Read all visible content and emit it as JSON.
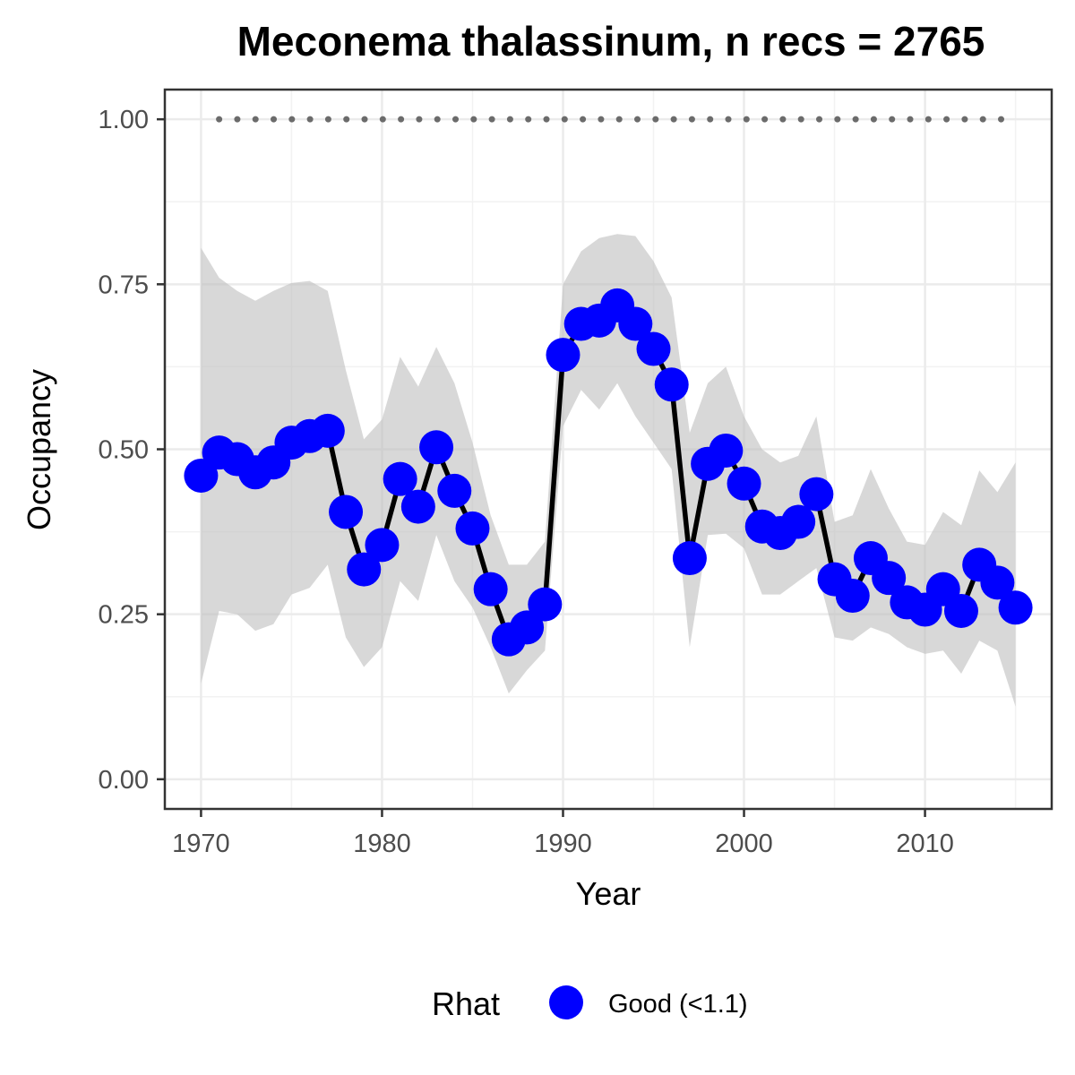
{
  "chart_data": {
    "type": "line",
    "title": "Meconema thalassinum, n recs = 2765",
    "xlabel": "Year",
    "ylabel": "Occupancy",
    "xlim": [
      1968,
      2017
    ],
    "ylim": [
      -0.045,
      1.045
    ],
    "x_ticks": [
      1970,
      1980,
      1990,
      2000,
      2010
    ],
    "x_tick_labels": [
      "1970",
      "1980",
      "1990",
      "2000",
      "2010"
    ],
    "y_ticks": [
      0,
      0.25,
      0.5,
      0.75,
      1.0
    ],
    "y_tick_labels": [
      "0.00",
      "0.25",
      "0.50",
      "0.75",
      "1.00"
    ],
    "grid": true,
    "legend": {
      "position": "bottom",
      "title": "Rhat",
      "items": [
        {
          "label": "Good (<1.1)",
          "color": "#0000ff"
        }
      ]
    },
    "colors": {
      "points": "#0000ff",
      "line": "#000000",
      "ribbon": "#bebebe",
      "reference": "#6b6b6b"
    },
    "years": [
      1970,
      1971,
      1972,
      1973,
      1974,
      1975,
      1976,
      1977,
      1978,
      1979,
      1980,
      1981,
      1982,
      1983,
      1984,
      1985,
      1986,
      1987,
      1988,
      1989,
      1990,
      1991,
      1992,
      1993,
      1994,
      1995,
      1996,
      1997,
      1998,
      1999,
      2000,
      2001,
      2002,
      2003,
      2004,
      2005,
      2006,
      2007,
      2008,
      2009,
      2010,
      2011,
      2012,
      2013,
      2014,
      2015
    ],
    "series": [
      {
        "name": "Good (<1.1)",
        "values": [
          0.46,
          0.495,
          0.485,
          0.465,
          0.48,
          0.51,
          0.52,
          0.528,
          0.405,
          0.318,
          0.355,
          0.455,
          0.413,
          0.503,
          0.437,
          0.38,
          0.288,
          0.212,
          0.23,
          0.265,
          0.643,
          0.69,
          0.695,
          0.718,
          0.69,
          0.652,
          0.598,
          0.335,
          0.478,
          0.498,
          0.448,
          0.383,
          0.373,
          0.39,
          0.432,
          0.303,
          0.278,
          0.335,
          0.305,
          0.268,
          0.257,
          0.288,
          0.255,
          0.325,
          0.298,
          0.26
        ]
      }
    ],
    "ribbon": {
      "upper": [
        0.805,
        0.76,
        0.74,
        0.725,
        0.74,
        0.752,
        0.755,
        0.74,
        0.62,
        0.515,
        0.545,
        0.64,
        0.595,
        0.655,
        0.6,
        0.51,
        0.4,
        0.325,
        0.325,
        0.36,
        0.75,
        0.8,
        0.82,
        0.826,
        0.823,
        0.785,
        0.73,
        0.525,
        0.6,
        0.625,
        0.55,
        0.5,
        0.48,
        0.49,
        0.55,
        0.39,
        0.4,
        0.47,
        0.41,
        0.36,
        0.355,
        0.405,
        0.385,
        0.468,
        0.435,
        0.48
      ],
      "lower": [
        0.145,
        0.255,
        0.25,
        0.225,
        0.235,
        0.28,
        0.29,
        0.325,
        0.215,
        0.17,
        0.2,
        0.3,
        0.27,
        0.37,
        0.3,
        0.26,
        0.2,
        0.13,
        0.165,
        0.195,
        0.535,
        0.59,
        0.56,
        0.6,
        0.55,
        0.51,
        0.47,
        0.2,
        0.37,
        0.372,
        0.35,
        0.28,
        0.28,
        0.3,
        0.32,
        0.215,
        0.21,
        0.23,
        0.22,
        0.2,
        0.19,
        0.195,
        0.16,
        0.21,
        0.195,
        0.11
      ]
    },
    "reference_line": {
      "value": 1.0,
      "x_start": 1971,
      "x_end": 2015
    }
  }
}
